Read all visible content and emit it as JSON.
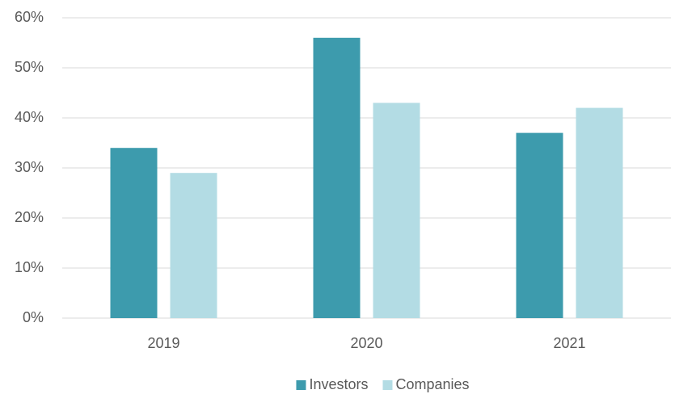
{
  "chart_data": {
    "type": "bar",
    "categories": [
      "2019",
      "2020",
      "2021"
    ],
    "series": [
      {
        "name": "Investors",
        "color": "#3d9bad",
        "values": [
          34,
          56,
          37
        ]
      },
      {
        "name": "Companies",
        "color": "#b3dce4",
        "values": [
          29,
          43,
          42
        ]
      }
    ],
    "ylim": [
      0,
      60
    ],
    "yticks": [
      {
        "value": 0,
        "label": "0%"
      },
      {
        "value": 10,
        "label": "10%"
      },
      {
        "value": 20,
        "label": "20%"
      },
      {
        "value": 30,
        "label": "30%"
      },
      {
        "value": 40,
        "label": "40%"
      },
      {
        "value": 50,
        "label": "50%"
      },
      {
        "value": 60,
        "label": "60%"
      }
    ],
    "grid": true,
    "legend": "bottom"
  }
}
